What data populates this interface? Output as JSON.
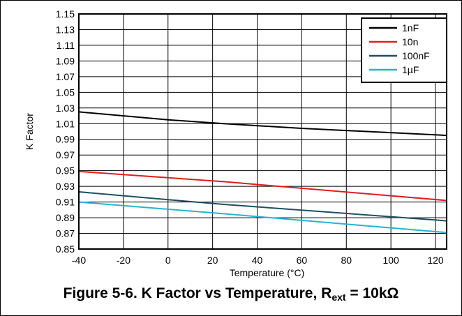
{
  "caption": {
    "prefix": "Figure 5-6. K Factor vs Temperature, R",
    "subscript": "ext",
    "suffix": " = 10kΩ"
  },
  "chart_data": {
    "type": "line",
    "title": "",
    "xlabel": "Temperature (°C)",
    "ylabel": "K Factor",
    "xlim": [
      -40,
      125
    ],
    "ylim": [
      0.85,
      1.15
    ],
    "x_ticks": [
      -40,
      -20,
      0,
      20,
      40,
      60,
      80,
      100,
      120
    ],
    "y_ticks": [
      0.85,
      0.87,
      0.89,
      0.91,
      0.93,
      0.95,
      0.97,
      0.99,
      1.01,
      1.03,
      1.05,
      1.07,
      1.09,
      1.11,
      1.13,
      1.15
    ],
    "grid": true,
    "legend_position": "top-right",
    "series": [
      {
        "name": "1nF",
        "color": "#000000",
        "x": [
          -40,
          0,
          25,
          60,
          125
        ],
        "y": [
          1.025,
          1.015,
          1.01,
          1.004,
          0.995
        ]
      },
      {
        "name": "10n",
        "color": "#e31d1d",
        "x": [
          -40,
          25,
          125
        ],
        "y": [
          0.949,
          0.936,
          0.912
        ]
      },
      {
        "name": "100nF",
        "color": "#1e4f63",
        "x": [
          -40,
          0,
          25,
          125
        ],
        "y": [
          0.923,
          0.913,
          0.907,
          0.886
        ]
      },
      {
        "name": "1µF",
        "color": "#25b4d2",
        "x": [
          -40,
          25,
          125
        ],
        "y": [
          0.91,
          0.895,
          0.871
        ]
      }
    ]
  }
}
